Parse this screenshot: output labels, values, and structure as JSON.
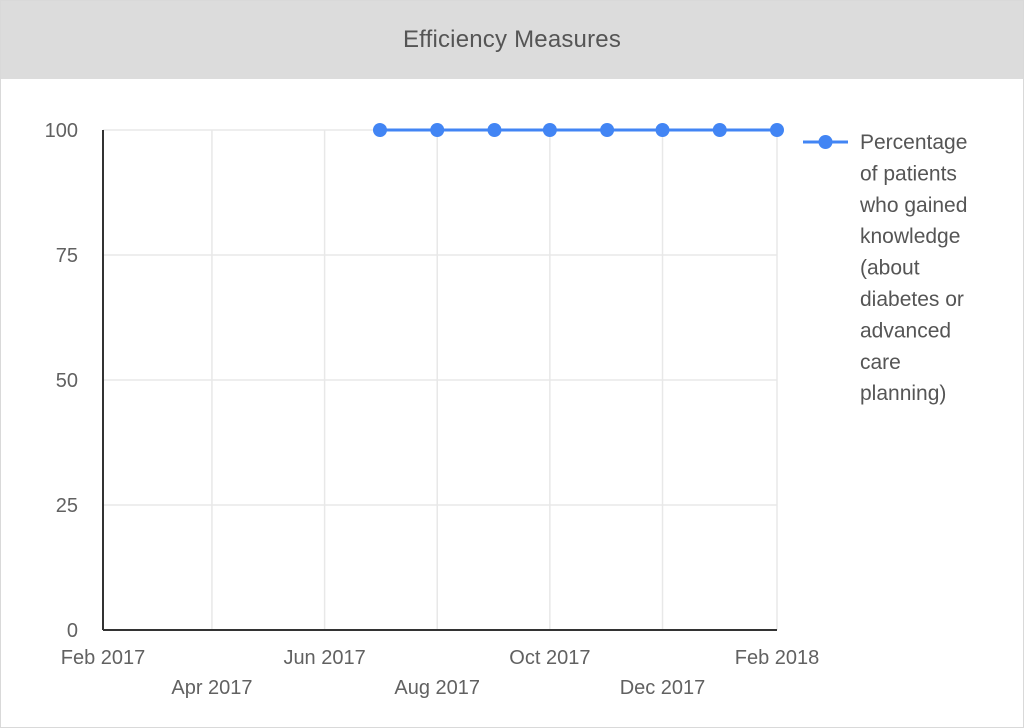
{
  "header": {
    "title": "Efficiency Measures"
  },
  "colors": {
    "series": "#4285F4",
    "grid": "#e8e8e8",
    "axis": "#333333",
    "header_bg": "#dcdcdc"
  },
  "chart_data": {
    "type": "line",
    "title": "Efficiency Measures",
    "xlabel": "",
    "ylabel": "",
    "x_axis": {
      "type": "date",
      "range": [
        "2017-02-01",
        "2018-02-01"
      ],
      "ticks": [
        {
          "date": "2017-02-01",
          "label": "Feb 2017"
        },
        {
          "date": "2017-04-01",
          "label": "Apr 2017"
        },
        {
          "date": "2017-06-01",
          "label": "Jun 2017"
        },
        {
          "date": "2017-08-01",
          "label": "Aug 2017"
        },
        {
          "date": "2017-10-01",
          "label": "Oct 2017"
        },
        {
          "date": "2017-12-01",
          "label": "Dec 2017"
        },
        {
          "date": "2018-02-01",
          "label": "Feb 2018"
        }
      ]
    },
    "y_axis": {
      "range": [
        0,
        100
      ],
      "ticks": [
        0,
        25,
        50,
        75,
        100
      ]
    },
    "grid": true,
    "legend_position": "right",
    "series": [
      {
        "name": "Percentage of patients who gained knowledge (about diabetes or advanced care planning)",
        "legend_lines": [
          "Percentage",
          "of patients",
          "who gained",
          "knowledge",
          "(about",
          "diabetes or",
          "advanced",
          "care",
          "planning)"
        ],
        "color": "#4285F4",
        "points": [
          {
            "x": "2017-07-01",
            "y": 100
          },
          {
            "x": "2017-08-01",
            "y": 100
          },
          {
            "x": "2017-09-01",
            "y": 100
          },
          {
            "x": "2017-10-01",
            "y": 100
          },
          {
            "x": "2017-11-01",
            "y": 100
          },
          {
            "x": "2017-12-01",
            "y": 100
          },
          {
            "x": "2018-01-01",
            "y": 100
          },
          {
            "x": "2018-02-01",
            "y": 100
          }
        ]
      }
    ]
  }
}
